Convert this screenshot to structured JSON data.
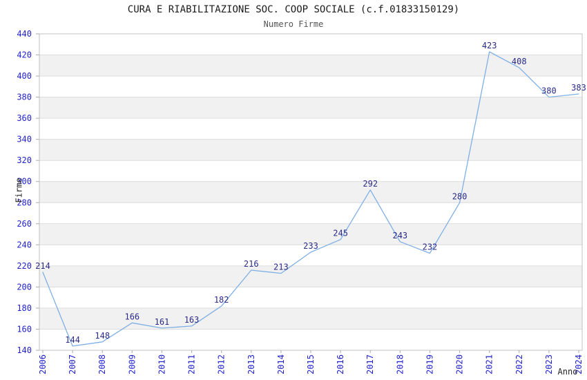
{
  "chart_data": {
    "type": "line",
    "title": "CURA E RIABILITAZIONE SOC. COOP SOCIALE (c.f.01833150129)",
    "subtitle": "Numero Firme",
    "xlabel": "Anno",
    "ylabel": "Firme",
    "x": [
      "2006",
      "2007",
      "2008",
      "2009",
      "2010",
      "2011",
      "2012",
      "2013",
      "2014",
      "2015",
      "2016",
      "2017",
      "2018",
      "2019",
      "2020",
      "2021",
      "2022",
      "2023",
      "2024"
    ],
    "series": [
      {
        "name": "Numero Firme",
        "values": [
          214,
          144,
          148,
          166,
          161,
          163,
          182,
          216,
          213,
          233,
          245,
          292,
          243,
          232,
          280,
          423,
          408,
          380,
          383
        ]
      }
    ],
    "ylim": [
      140,
      440
    ],
    "ytick_step": 20,
    "grid": true,
    "legend": "none",
    "background_bands": "alternating horizontal, light gray on odd bands"
  },
  "style": {
    "line_color": "#7eafe4",
    "tick_label_color": "#2222cc",
    "data_label_color": "#2a2a87",
    "band_color": "#f1f1f1",
    "gridline_color": "#dcdcdc",
    "border_color": "#c0c0c0",
    "tick_mark_color": "#aaaaaa",
    "title_color": "#1a1a1a",
    "subtitle_color": "#555555",
    "axis_title_color": "#222222"
  }
}
